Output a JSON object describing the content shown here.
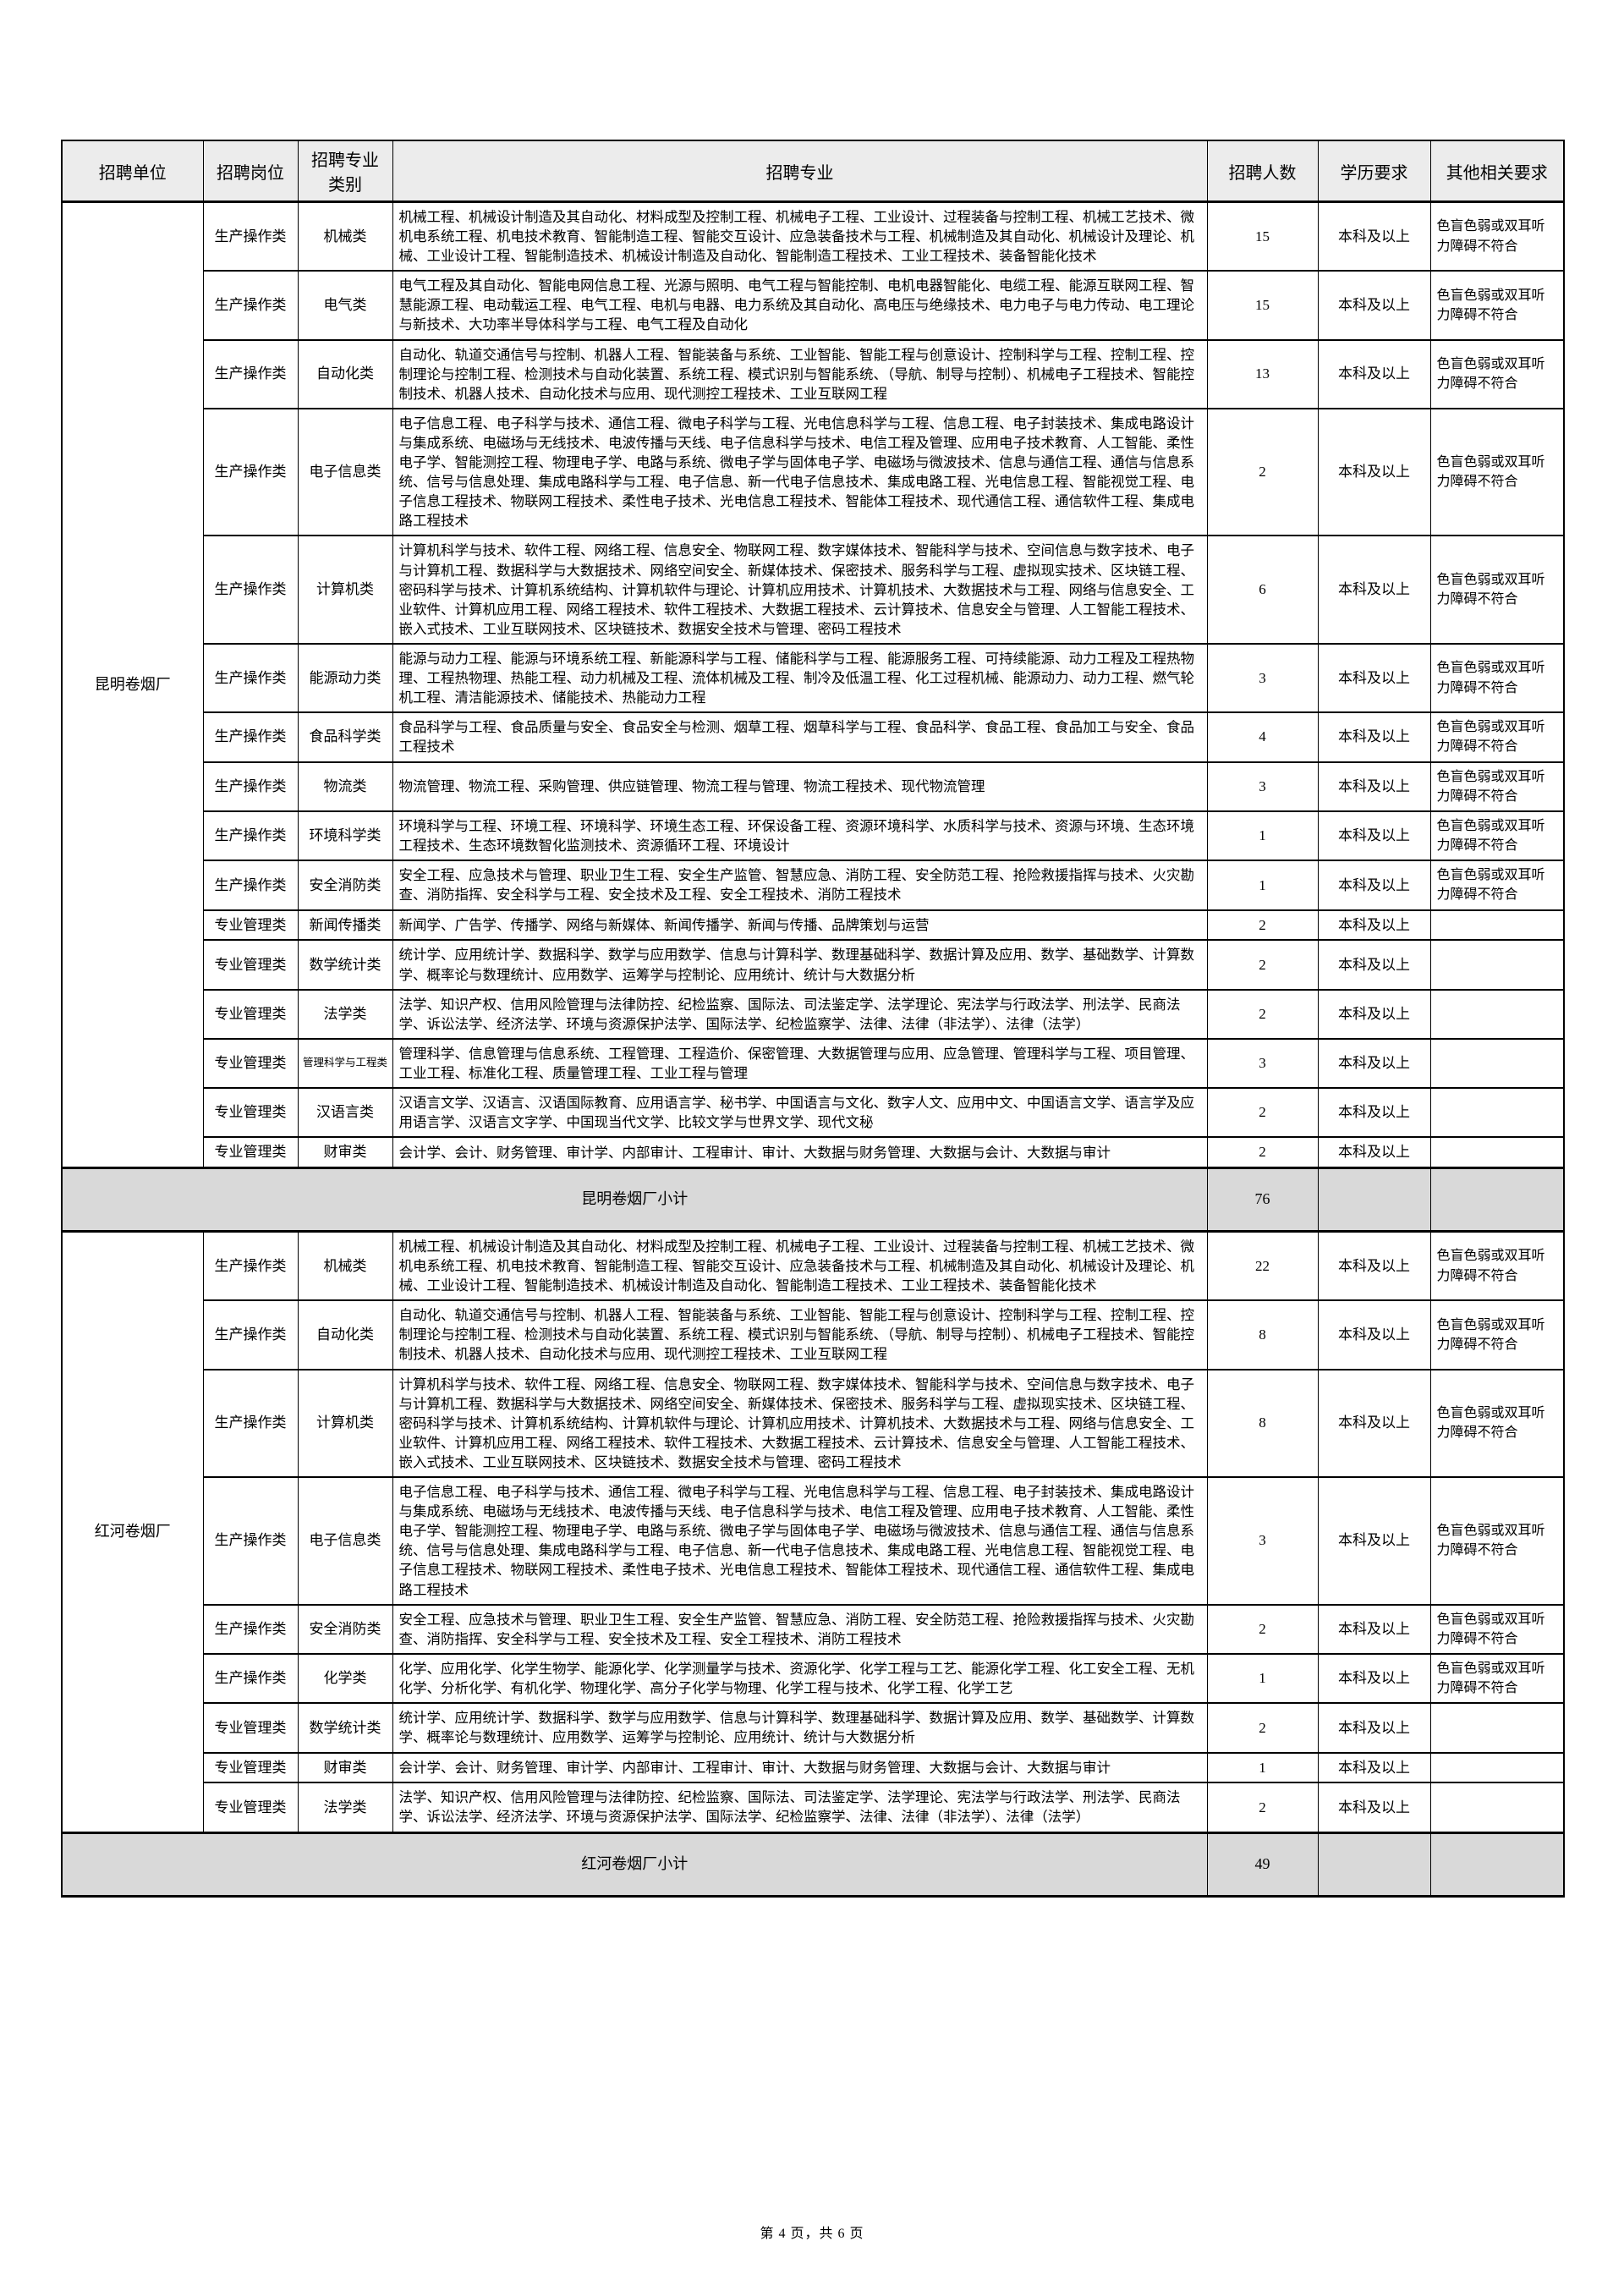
{
  "page": {
    "footer": "第 4 页，共 6 页"
  },
  "table": {
    "headers": [
      "招聘单位",
      "招聘岗位",
      "招聘专业类别",
      "招聘专业",
      "招聘人数",
      "学历要求",
      "其他相关要求"
    ],
    "groups": [
      {
        "unit": "昆明卷烟厂",
        "rows": [
          {
            "post": "生产操作类",
            "category": "机械类",
            "majors": "机械工程、机械设计制造及其自动化、材料成型及控制工程、机械电子工程、工业设计、过程装备与控制工程、机械工艺技术、微机电系统工程、机电技术教育、智能制造工程、智能交互设计、应急装备技术与工程、机械制造及其自动化、机械设计及理论、机械、工业设计工程、智能制造技术、机械设计制造及自动化、智能制造工程技术、工业工程技术、装备智能化技术",
            "count": "15",
            "education": "本科及以上",
            "other": "色盲色弱或双耳听力障碍不符合"
          },
          {
            "post": "生产操作类",
            "category": "电气类",
            "majors": "电气工程及其自动化、智能电网信息工程、光源与照明、电气工程与智能控制、电机电器智能化、电缆工程、能源互联网工程、智慧能源工程、电动载运工程、电气工程、电机与电器、电力系统及其自动化、高电压与绝缘技术、电力电子与电力传动、电工理论与新技术、大功率半导体科学与工程、电气工程及自动化",
            "count": "15",
            "education": "本科及以上",
            "other": "色盲色弱或双耳听力障碍不符合"
          },
          {
            "post": "生产操作类",
            "category": "自动化类",
            "majors": "自动化、轨道交通信号与控制、机器人工程、智能装备与系统、工业智能、智能工程与创意设计、控制科学与工程、控制工程、控制理论与控制工程、检测技术与自动化装置、系统工程、模式识别与智能系统、（导航、制导与控制）、机械电子工程技术、智能控制技术、机器人技术、自动化技术与应用、现代测控工程技术、工业互联网工程",
            "count": "13",
            "education": "本科及以上",
            "other": "色盲色弱或双耳听力障碍不符合"
          },
          {
            "post": "生产操作类",
            "category": "电子信息类",
            "majors": "电子信息工程、电子科学与技术、通信工程、微电子科学与工程、光电信息科学与工程、信息工程、电子封装技术、集成电路设计与集成系统、电磁场与无线技术、电波传播与天线、电子信息科学与技术、电信工程及管理、应用电子技术教育、人工智能、柔性电子学、智能测控工程、物理电子学、电路与系统、微电子学与固体电子学、电磁场与微波技术、信息与通信工程、通信与信息系统、信号与信息处理、集成电路科学与工程、电子信息、新一代电子信息技术、集成电路工程、光电信息工程、智能视觉工程、电子信息工程技术、物联网工程技术、柔性电子技术、光电信息工程技术、智能体工程技术、现代通信工程、通信软件工程、集成电路工程技术",
            "count": "2",
            "education": "本科及以上",
            "other": "色盲色弱或双耳听力障碍不符合"
          },
          {
            "post": "生产操作类",
            "category": "计算机类",
            "majors": "计算机科学与技术、软件工程、网络工程、信息安全、物联网工程、数字媒体技术、智能科学与技术、空间信息与数字技术、电子与计算机工程、数据科学与大数据技术、网络空间安全、新媒体技术、保密技术、服务科学与工程、虚拟现实技术、区块链工程、密码科学与技术、计算机系统结构、计算机软件与理论、计算机应用技术、计算机技术、大数据技术与工程、网络与信息安全、工业软件、计算机应用工程、网络工程技术、软件工程技术、大数据工程技术、云计算技术、信息安全与管理、人工智能工程技术、嵌入式技术、工业互联网技术、区块链技术、数据安全技术与管理、密码工程技术",
            "count": "6",
            "education": "本科及以上",
            "other": "色盲色弱或双耳听力障碍不符合"
          },
          {
            "post": "生产操作类",
            "category": "能源动力类",
            "majors": "能源与动力工程、能源与环境系统工程、新能源科学与工程、储能科学与工程、能源服务工程、可持续能源、动力工程及工程热物理、工程热物理、热能工程、动力机械及工程、流体机械及工程、制冷及低温工程、化工过程机械、能源动力、动力工程、燃气轮机工程、清洁能源技术、储能技术、热能动力工程",
            "count": "3",
            "education": "本科及以上",
            "other": "色盲色弱或双耳听力障碍不符合"
          },
          {
            "post": "生产操作类",
            "category": "食品科学类",
            "majors": "食品科学与工程、食品质量与安全、食品安全与检测、烟草工程、烟草科学与工程、食品科学、食品工程、食品加工与安全、食品工程技术",
            "count": "4",
            "education": "本科及以上",
            "other": "色盲色弱或双耳听力障碍不符合"
          },
          {
            "post": "生产操作类",
            "category": "物流类",
            "majors": "物流管理、物流工程、采购管理、供应链管理、物流工程与管理、物流工程技术、现代物流管理",
            "count": "3",
            "education": "本科及以上",
            "other": "色盲色弱或双耳听力障碍不符合"
          },
          {
            "post": "生产操作类",
            "category": "环境科学类",
            "majors": "环境科学与工程、环境工程、环境科学、环境生态工程、环保设备工程、资源环境科学、水质科学与技术、资源与环境、生态环境工程技术、生态环境数智化监测技术、资源循环工程、环境设计",
            "count": "1",
            "education": "本科及以上",
            "other": "色盲色弱或双耳听力障碍不符合"
          },
          {
            "post": "生产操作类",
            "category": "安全消防类",
            "majors": "安全工程、应急技术与管理、职业卫生工程、安全生产监管、智慧应急、消防工程、安全防范工程、抢险救援指挥与技术、火灾勘查、消防指挥、安全科学与工程、安全技术及工程、安全工程技术、消防工程技术",
            "count": "1",
            "education": "本科及以上",
            "other": "色盲色弱或双耳听力障碍不符合"
          },
          {
            "post": "专业管理类",
            "category": "新闻传播类",
            "majors": "新闻学、广告学、传播学、网络与新媒体、新闻传播学、新闻与传播、品牌策划与运营",
            "count": "2",
            "education": "本科及以上",
            "other": ""
          },
          {
            "post": "专业管理类",
            "category": "数学统计类",
            "majors": "统计学、应用统计学、数据科学、数学与应用数学、信息与计算科学、数理基础科学、数据计算及应用、数学、基础数学、计算数学、概率论与数理统计、应用数学、运筹学与控制论、应用统计、统计与大数据分析",
            "count": "2",
            "education": "本科及以上",
            "other": ""
          },
          {
            "post": "专业管理类",
            "category": "法学类",
            "majors": "法学、知识产权、信用风险管理与法律防控、纪检监察、国际法、司法鉴定学、法学理论、宪法学与行政法学、刑法学、民商法学、诉讼法学、经济法学、环境与资源保护法学、国际法学、纪检监察学、法律、法律（非法学）、法律（法学）",
            "count": "2",
            "education": "本科及以上",
            "other": ""
          },
          {
            "post": "专业管理类",
            "category": "管理科学与工程类",
            "majors": "管理科学、信息管理与信息系统、工程管理、工程造价、保密管理、大数据管理与应用、应急管理、管理科学与工程、项目管理、工业工程、标准化工程、质量管理工程、工业工程与管理",
            "count": "3",
            "education": "本科及以上",
            "other": ""
          },
          {
            "post": "专业管理类",
            "category": "汉语言类",
            "majors": "汉语言文学、汉语言、汉语国际教育、应用语言学、秘书学、中国语言与文化、数字人文、应用中文、中国语言文学、语言学及应用语言学、汉语言文字学、中国现当代文学、比较文学与世界文学、现代文秘",
            "count": "2",
            "education": "本科及以上",
            "other": ""
          },
          {
            "post": "专业管理类",
            "category": "财审类",
            "majors": "会计学、会计、财务管理、审计学、内部审计、工程审计、审计、大数据与财务管理、大数据与会计、大数据与审计",
            "count": "2",
            "education": "本科及以上",
            "other": ""
          }
        ],
        "subtotal": {
          "label": "昆明卷烟厂小计",
          "count": "76"
        }
      },
      {
        "unit": "红河卷烟厂",
        "rows": [
          {
            "post": "生产操作类",
            "category": "机械类",
            "majors": "机械工程、机械设计制造及其自动化、材料成型及控制工程、机械电子工程、工业设计、过程装备与控制工程、机械工艺技术、微机电系统工程、机电技术教育、智能制造工程、智能交互设计、应急装备技术与工程、机械制造及其自动化、机械设计及理论、机械、工业设计工程、智能制造技术、机械设计制造及自动化、智能制造工程技术、工业工程技术、装备智能化技术",
            "count": "22",
            "education": "本科及以上",
            "other": "色盲色弱或双耳听力障碍不符合"
          },
          {
            "post": "生产操作类",
            "category": "自动化类",
            "majors": "自动化、轨道交通信号与控制、机器人工程、智能装备与系统、工业智能、智能工程与创意设计、控制科学与工程、控制工程、控制理论与控制工程、检测技术与自动化装置、系统工程、模式识别与智能系统、（导航、制导与控制）、机械电子工程技术、智能控制技术、机器人技术、自动化技术与应用、现代测控工程技术、工业互联网工程",
            "count": "8",
            "education": "本科及以上",
            "other": "色盲色弱或双耳听力障碍不符合"
          },
          {
            "post": "生产操作类",
            "category": "计算机类",
            "majors": "计算机科学与技术、软件工程、网络工程、信息安全、物联网工程、数字媒体技术、智能科学与技术、空间信息与数字技术、电子与计算机工程、数据科学与大数据技术、网络空间安全、新媒体技术、保密技术、服务科学与工程、虚拟现实技术、区块链工程、密码科学与技术、计算机系统结构、计算机软件与理论、计算机应用技术、计算机技术、大数据技术与工程、网络与信息安全、工业软件、计算机应用工程、网络工程技术、软件工程技术、大数据工程技术、云计算技术、信息安全与管理、人工智能工程技术、嵌入式技术、工业互联网技术、区块链技术、数据安全技术与管理、密码工程技术",
            "count": "8",
            "education": "本科及以上",
            "other": "色盲色弱或双耳听力障碍不符合"
          },
          {
            "post": "生产操作类",
            "category": "电子信息类",
            "majors": "电子信息工程、电子科学与技术、通信工程、微电子科学与工程、光电信息科学与工程、信息工程、电子封装技术、集成电路设计与集成系统、电磁场与无线技术、电波传播与天线、电子信息科学与技术、电信工程及管理、应用电子技术教育、人工智能、柔性电子学、智能测控工程、物理电子学、电路与系统、微电子学与固体电子学、电磁场与微波技术、信息与通信工程、通信与信息系统、信号与信息处理、集成电路科学与工程、电子信息、新一代电子信息技术、集成电路工程、光电信息工程、智能视觉工程、电子信息工程技术、物联网工程技术、柔性电子技术、光电信息工程技术、智能体工程技术、现代通信工程、通信软件工程、集成电路工程技术",
            "count": "3",
            "education": "本科及以上",
            "other": "色盲色弱或双耳听力障碍不符合"
          },
          {
            "post": "生产操作类",
            "category": "安全消防类",
            "majors": "安全工程、应急技术与管理、职业卫生工程、安全生产监管、智慧应急、消防工程、安全防范工程、抢险救援指挥与技术、火灾勘查、消防指挥、安全科学与工程、安全技术及工程、安全工程技术、消防工程技术",
            "count": "2",
            "education": "本科及以上",
            "other": "色盲色弱或双耳听力障碍不符合"
          },
          {
            "post": "生产操作类",
            "category": "化学类",
            "majors": "化学、应用化学、化学生物学、能源化学、化学测量学与技术、资源化学、化学工程与工艺、能源化学工程、化工安全工程、无机化学、分析化学、有机化学、物理化学、高分子化学与物理、化学工程与技术、化学工程、化学工艺",
            "count": "1",
            "education": "本科及以上",
            "other": "色盲色弱或双耳听力障碍不符合"
          },
          {
            "post": "专业管理类",
            "category": "数学统计类",
            "majors": "统计学、应用统计学、数据科学、数学与应用数学、信息与计算科学、数理基础科学、数据计算及应用、数学、基础数学、计算数学、概率论与数理统计、应用数学、运筹学与控制论、应用统计、统计与大数据分析",
            "count": "2",
            "education": "本科及以上",
            "other": ""
          },
          {
            "post": "专业管理类",
            "category": "财审类",
            "majors": "会计学、会计、财务管理、审计学、内部审计、工程审计、审计、大数据与财务管理、大数据与会计、大数据与审计",
            "count": "1",
            "education": "本科及以上",
            "other": ""
          },
          {
            "post": "专业管理类",
            "category": "法学类",
            "majors": "法学、知识产权、信用风险管理与法律防控、纪检监察、国际法、司法鉴定学、法学理论、宪法学与行政法学、刑法学、民商法学、诉讼法学、经济法学、环境与资源保护法学、国际法学、纪检监察学、法律、法律（非法学）、法律（法学）",
            "count": "2",
            "education": "本科及以上",
            "other": ""
          }
        ],
        "subtotal": {
          "label": "红河卷烟厂小计",
          "count": "49"
        }
      }
    ]
  }
}
